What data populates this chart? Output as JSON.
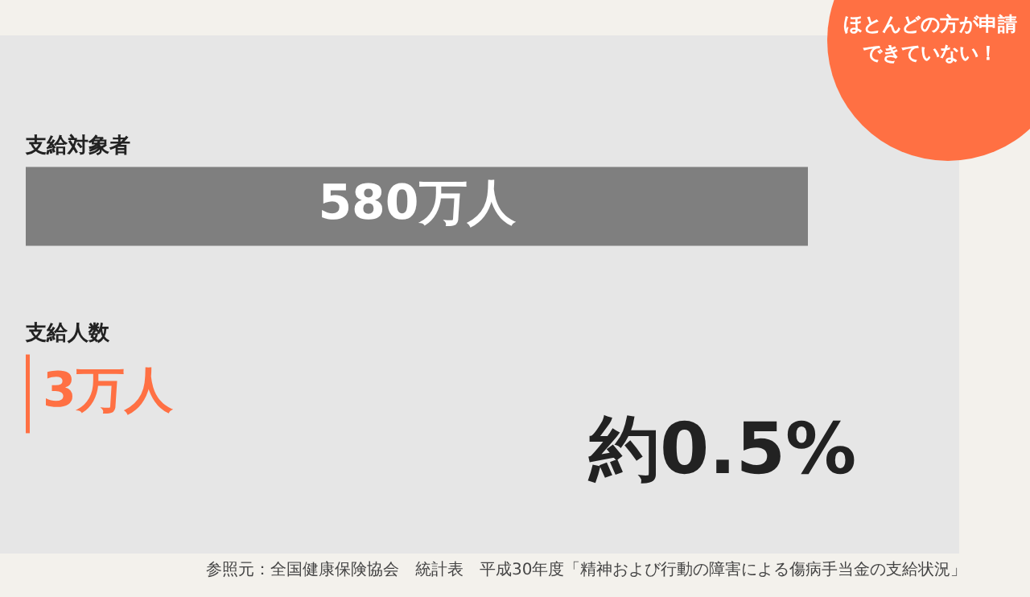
{
  "chart_data": {
    "type": "bar",
    "orientation": "horizontal",
    "categories": [
      "支給対象者",
      "支給人数"
    ],
    "values": [
      580,
      3
    ],
    "colors": [
      "#7f7f7f",
      "#ff7043"
    ],
    "value_labels": [
      "580万人",
      "3万人"
    ],
    "legend": false,
    "tick_labels": false,
    "annotations": [
      "約0.5%",
      "ほとんどの方が申請できていない！",
      "参照元：全国健康保険協会　統計表　平成30年度「精神および行動の障害による傷病手当金の支給状況」"
    ]
  }
}
